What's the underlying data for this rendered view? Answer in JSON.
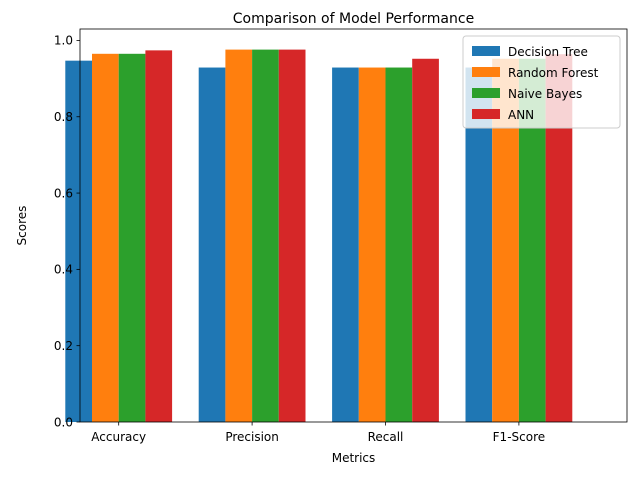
{
  "chart_data": {
    "type": "bar",
    "title": "Comparison of Model Performance",
    "xlabel": "Metrics",
    "ylabel": "Scores",
    "categories": [
      "Accuracy",
      "Precision",
      "Recall",
      "F1-Score"
    ],
    "ylim": [
      0,
      1.03
    ],
    "yticks": [
      "0.0",
      "0.2",
      "0.4",
      "0.6",
      "0.8",
      "1.0"
    ],
    "ytick_values": [
      0,
      0.2,
      0.4,
      0.6,
      0.8,
      1.0
    ],
    "grid": false,
    "legend_position": "top-right",
    "series": [
      {
        "name": "Decision Tree",
        "color": "#1f77b4",
        "values": [
          0.947,
          0.929,
          0.929,
          0.929
        ]
      },
      {
        "name": "Random Forest",
        "color": "#ff7f0e",
        "values": [
          0.965,
          0.976,
          0.929,
          0.952
        ]
      },
      {
        "name": "Naive Bayes",
        "color": "#2ca02c",
        "values": [
          0.965,
          0.976,
          0.929,
          0.952
        ]
      },
      {
        "name": "ANN",
        "color": "#d62728",
        "values": [
          0.974,
          0.976,
          0.952,
          0.964
        ]
      }
    ]
  }
}
